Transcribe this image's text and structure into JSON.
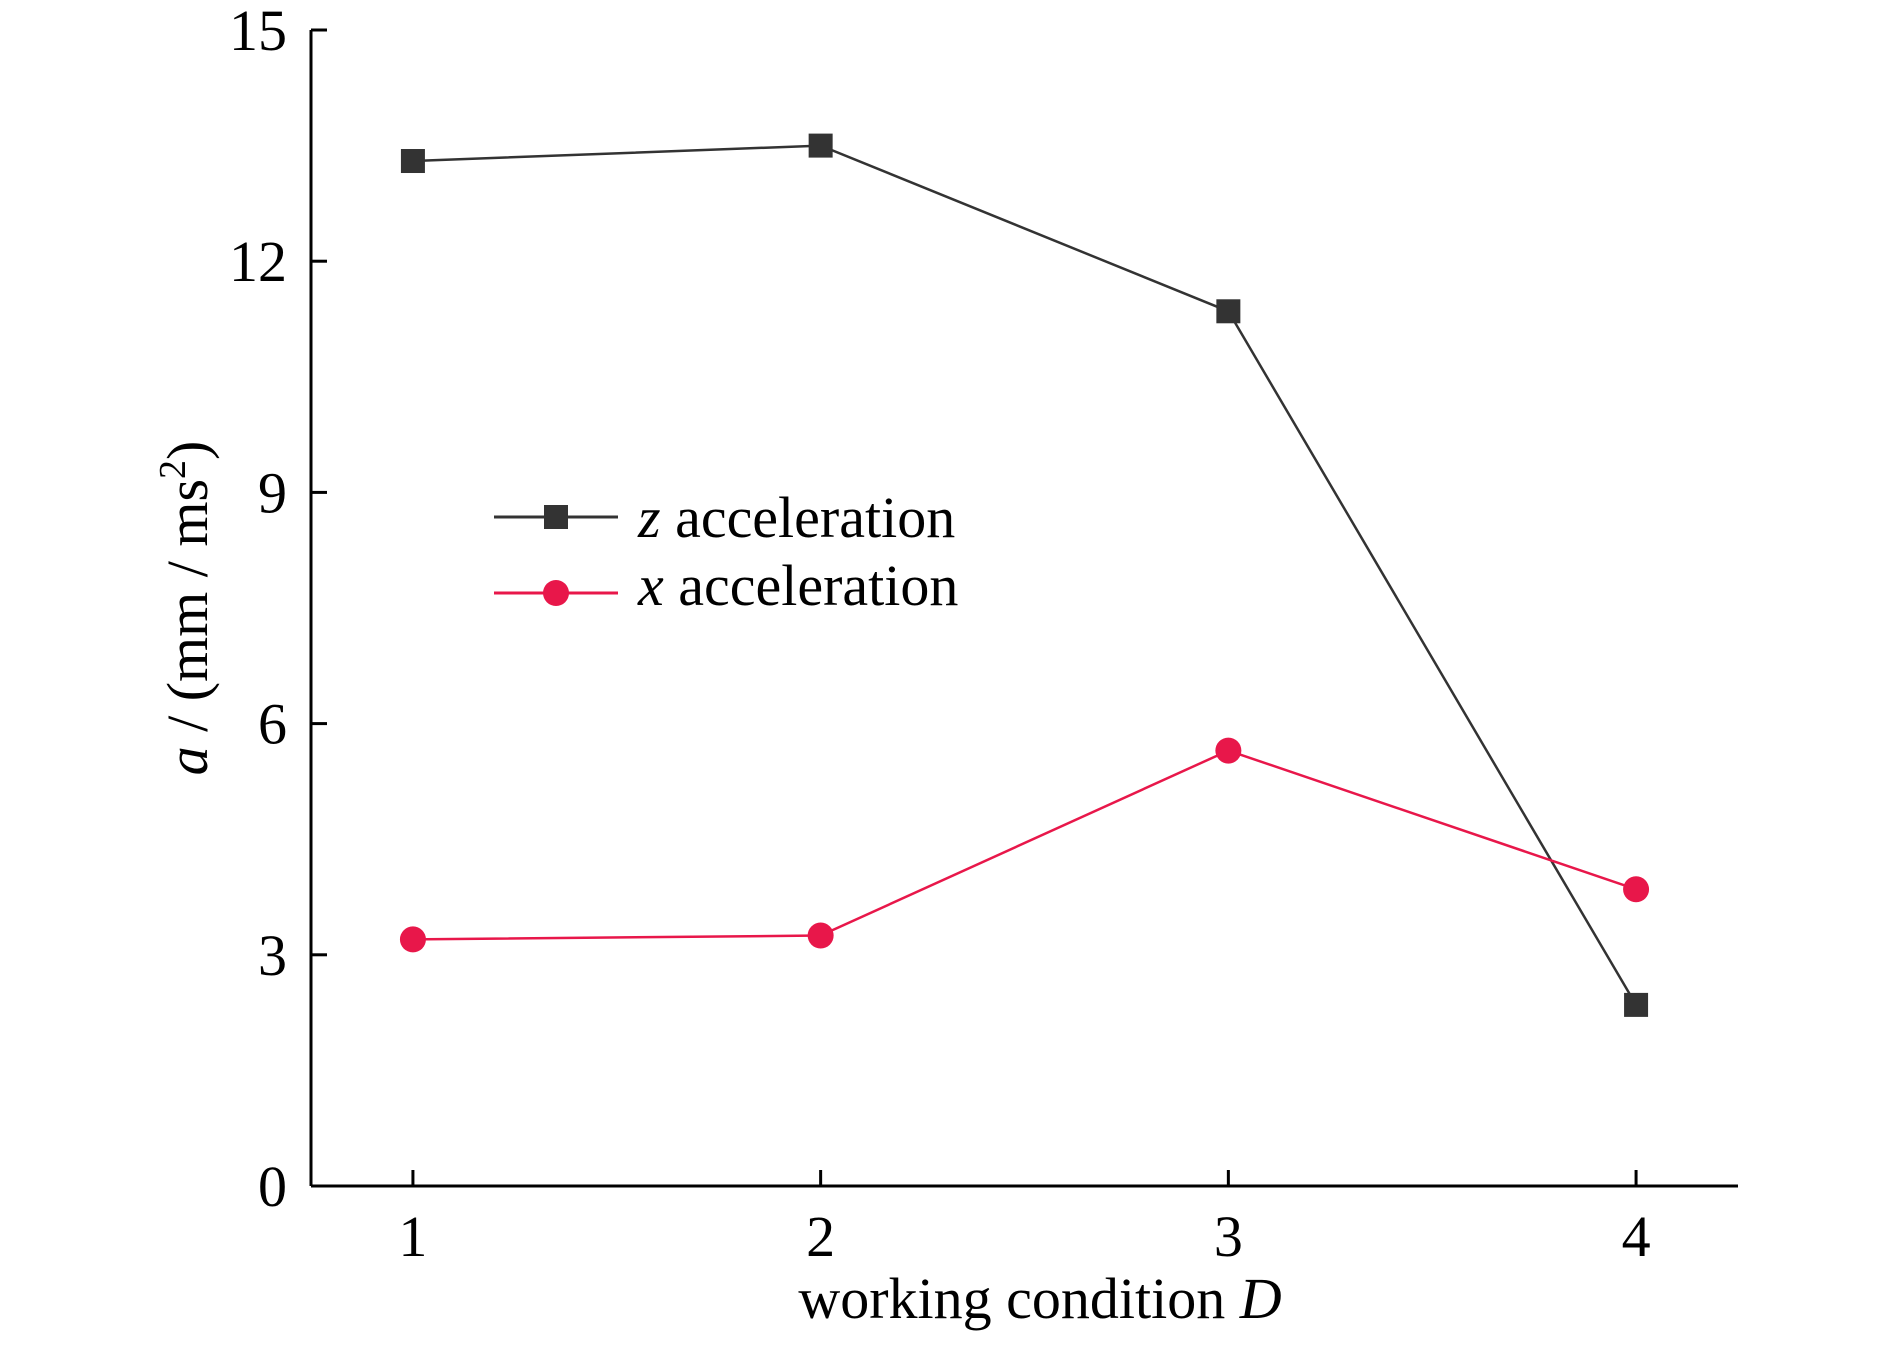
{
  "chart_data": {
    "type": "line",
    "title": "",
    "xlabel": "working condition",
    "xlabel_var": "D",
    "ylabel_var": "a",
    "ylabel_unit": "(mm / ms",
    "ylabel_sup": "2",
    "ylabel_close": ")",
    "x": [
      1,
      2,
      3,
      4
    ],
    "x_ticks": [
      "1",
      "2",
      "3",
      "4"
    ],
    "xlim": [
      0.75,
      4.25
    ],
    "ylim": [
      0,
      15
    ],
    "y_ticks": [
      "0",
      "3",
      "6",
      "9",
      "12",
      "15"
    ],
    "y_tick_values": [
      0,
      3,
      6,
      9,
      12,
      15
    ],
    "grid": false,
    "legend_position": "center-left",
    "series": [
      {
        "name_var": "z",
        "name_text": "acceleration",
        "values": [
          13.3,
          13.5,
          11.35,
          2.35
        ],
        "color": "#333333",
        "marker": "square"
      },
      {
        "name_var": "x",
        "name_text": "acceleration",
        "values": [
          3.2,
          3.25,
          5.65,
          3.85
        ],
        "color": "#e8174a",
        "marker": "circle"
      }
    ]
  }
}
